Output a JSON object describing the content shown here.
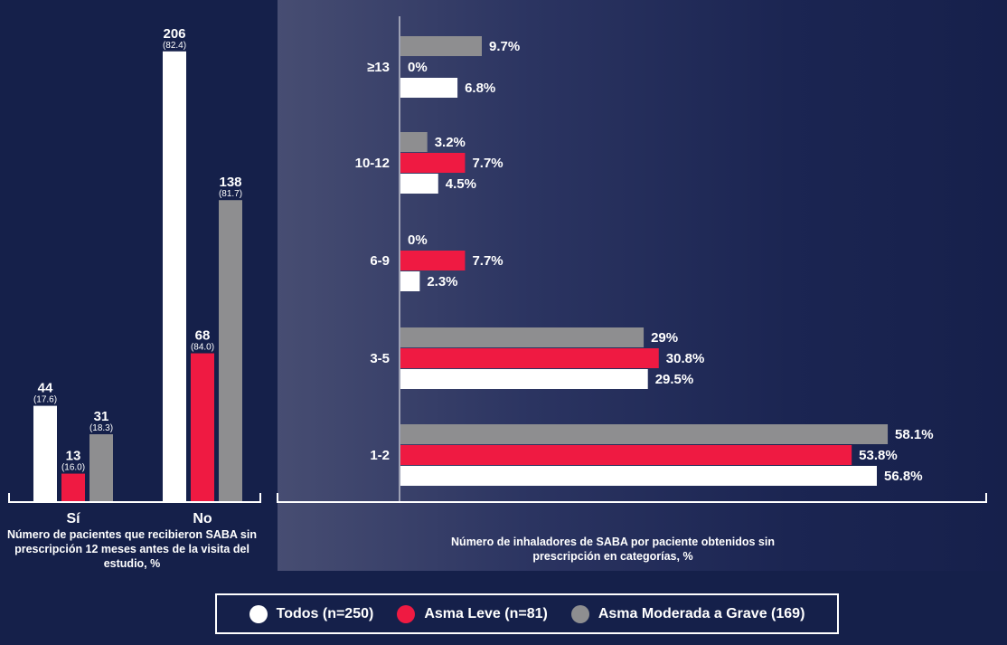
{
  "colors": {
    "todos": "#ffffff",
    "leve": "#ef1a42",
    "moderada": "#8e8e90",
    "axis": "#ffffff",
    "background": "#15204a"
  },
  "legend": [
    {
      "label": "Todos (n=250)",
      "series": "todos"
    },
    {
      "label": "Asma Leve (n=81)",
      "series": "leve"
    },
    {
      "label": "Asma Moderada a Grave (169)",
      "series": "moderada"
    }
  ],
  "chart_data": [
    {
      "type": "bar",
      "orientation": "vertical",
      "title": "",
      "xlabel": "Número de pacientes que recibieron SABA sin prescripción  12 meses antes de la visita del estudio, %",
      "ylabel": "",
      "categories": [
        "Sí",
        "No"
      ],
      "ylim": [
        0,
        215
      ],
      "series": [
        {
          "key": "todos",
          "values": [
            44,
            206
          ],
          "percents": [
            "(17.6)",
            "(82.4)"
          ]
        },
        {
          "key": "leve",
          "values": [
            13,
            68
          ],
          "percents": [
            "(16.0)",
            "(84.0)"
          ]
        },
        {
          "key": "moderada",
          "values": [
            31,
            138
          ],
          "percents": [
            "(18.3)",
            "(81.7)"
          ]
        }
      ]
    },
    {
      "type": "bar",
      "orientation": "horizontal",
      "title": "",
      "xlabel": "Número de inhaladores de SABA por paciente obtenidos sin prescripción  en categorías, %",
      "ylabel": "",
      "categories": [
        "≥13",
        "10-12",
        "6-9",
        "3-5",
        "1-2"
      ],
      "xlim": [
        0,
        63
      ],
      "series": [
        {
          "key": "moderada",
          "values": [
            9.7,
            3.2,
            0,
            29,
            58.1
          ],
          "labels": [
            "9.7%",
            "3.2%",
            "0%",
            "29%",
            "58.1%"
          ]
        },
        {
          "key": "leve",
          "values": [
            0,
            7.7,
            7.7,
            30.8,
            53.8
          ],
          "labels": [
            "0%",
            "7.7%",
            "7.7%",
            "30.8%",
            "53.8%"
          ]
        },
        {
          "key": "todos",
          "values": [
            6.8,
            4.5,
            2.3,
            29.5,
            56.8
          ],
          "labels": [
            "6.8%",
            "4.5%",
            "2.3%",
            "29.5%",
            "56.8%"
          ]
        }
      ]
    }
  ]
}
